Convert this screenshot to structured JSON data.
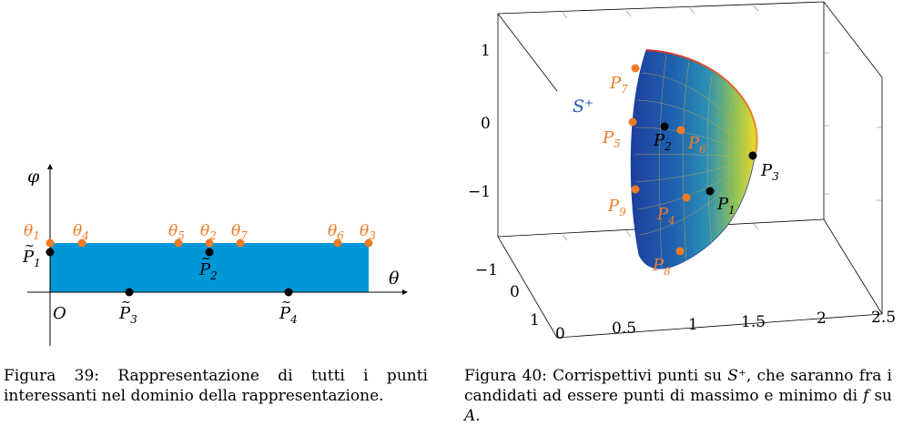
{
  "figure_left": {
    "axis_labels": {
      "x": "θ",
      "y": "φ",
      "origin": "O"
    },
    "colors": {
      "rect_fill": "#0097d7",
      "orange": "#f07b26",
      "black": "#000000"
    },
    "theta_labels": [
      {
        "base": "θ",
        "sub": "1"
      },
      {
        "base": "θ",
        "sub": "4"
      },
      {
        "base": "θ",
        "sub": "5"
      },
      {
        "base": "θ",
        "sub": "2"
      },
      {
        "base": "θ",
        "sub": "7"
      },
      {
        "base": "θ",
        "sub": "6"
      },
      {
        "base": "θ",
        "sub": "3"
      }
    ],
    "p_tilde_labels": [
      {
        "base": "P",
        "sub": "1"
      },
      {
        "base": "P",
        "sub": "2"
      },
      {
        "base": "P",
        "sub": "3"
      },
      {
        "base": "P",
        "sub": "4"
      }
    ]
  },
  "figure_right": {
    "surface_label": "S⁺",
    "colors": {
      "blue": "#1f5fb4",
      "orange": "#f07b26",
      "black": "#000000"
    },
    "z_ticks": [
      "1",
      "0",
      "−1"
    ],
    "y_ticks": [
      "−1",
      "0",
      "1"
    ],
    "x_ticks": [
      "0",
      "0.5",
      "1",
      "1.5",
      "2",
      "2.5"
    ],
    "black_points": [
      {
        "base": "P",
        "sub": "1"
      },
      {
        "base": "P",
        "sub": "2"
      },
      {
        "base": "P",
        "sub": "3"
      }
    ],
    "orange_points": [
      {
        "base": "P",
        "sub": "4"
      },
      {
        "base": "P",
        "sub": "5"
      },
      {
        "base": "P",
        "sub": "6"
      },
      {
        "base": "P",
        "sub": "7"
      },
      {
        "base": "P",
        "sub": "8"
      },
      {
        "base": "P",
        "sub": "9"
      }
    ]
  },
  "captions": {
    "left": "Figura 39:  Rappresentazione di tutti i punti interessanti nel dominio della rappresentazione.",
    "right_prefix": "Figura 40: Corrispettivi punti su ",
    "right_math": "S⁺",
    "right_middle": ", che saranno fra i candidati ad essere punti di massimo e minimo di ",
    "right_f": "f",
    "right_su": " su ",
    "right_A": "A",
    "right_end": "."
  }
}
